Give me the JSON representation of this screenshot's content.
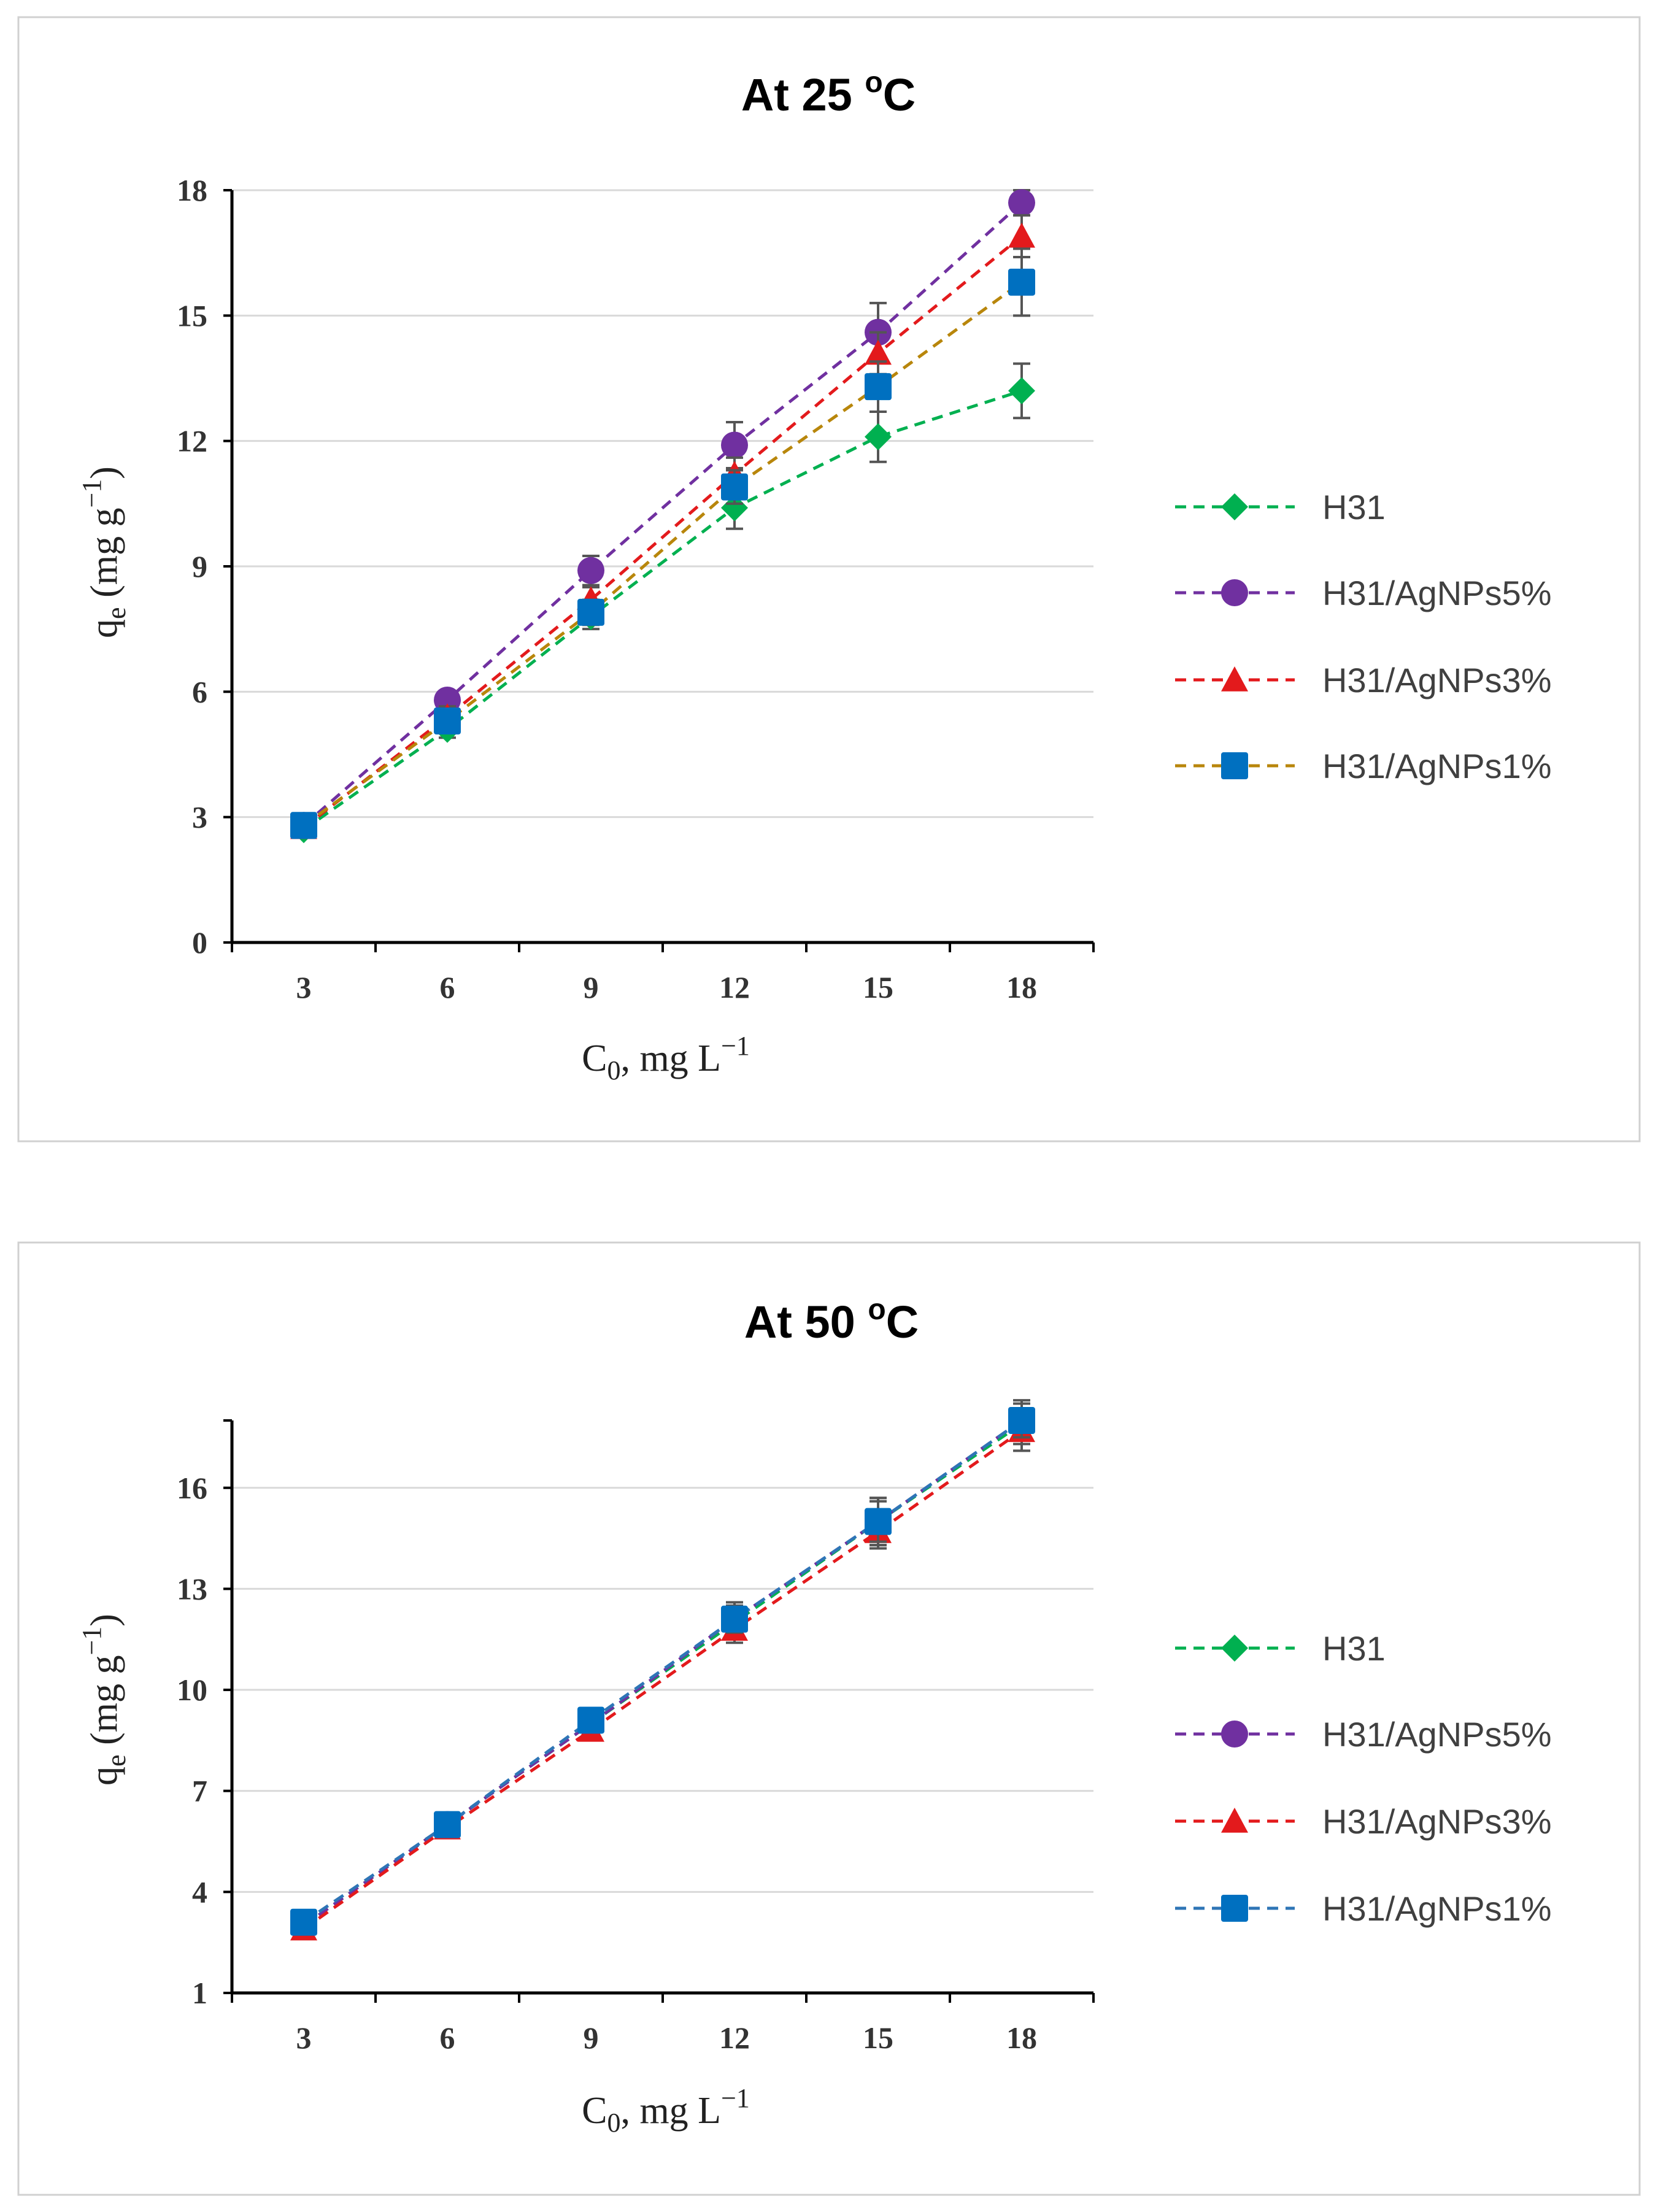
{
  "chart_data": [
    {
      "type": "line",
      "title": "At 25 °C",
      "title_main": "At 25 ",
      "title_sup": "o",
      "title_unit": "C",
      "xlabel": "C0, mg L−1",
      "ylabel": "qe (mg g−1)",
      "categories": [
        3,
        6,
        9,
        12,
        15,
        18
      ],
      "yticks": [
        0,
        3,
        6,
        9,
        12,
        15,
        18
      ],
      "ylim": [
        0,
        18
      ],
      "grid": true,
      "legend_position": "right",
      "series": [
        {
          "name": "H31",
          "marker": "diamond",
          "color": "#00b050",
          "values": [
            2.7,
            5.1,
            7.8,
            10.4,
            12.1,
            13.2
          ],
          "errors": [
            0.15,
            0.2,
            0.3,
            0.5,
            0.6,
            0.65
          ]
        },
        {
          "name": "H31/AgNPs5%",
          "marker": "circle",
          "color": "#7030a0",
          "values": [
            2.8,
            5.8,
            8.9,
            11.9,
            14.6,
            17.7
          ],
          "errors": [
            0.15,
            0.2,
            0.35,
            0.55,
            0.7,
            0.3
          ]
        },
        {
          "name": "H31/AgNPs3%",
          "marker": "triangle",
          "color": "#e31a1c",
          "values": [
            2.75,
            5.4,
            8.2,
            11.2,
            14.1,
            16.9
          ],
          "errors": [
            0.15,
            0.25,
            0.3,
            0.4,
            0.5,
            0.5
          ]
        },
        {
          "name": "H31/AgNPs1%",
          "marker": "square",
          "color": "#0070c0",
          "line_color": "#b8860b",
          "values": [
            2.8,
            5.3,
            7.9,
            10.9,
            13.3,
            15.8
          ],
          "errors": [
            0.15,
            0.2,
            0.3,
            0.4,
            0.6,
            0.8
          ]
        }
      ]
    },
    {
      "type": "line",
      "title": "At 50 °C",
      "title_main": "At 50 ",
      "title_sup": "o",
      "title_unit": "C",
      "xlabel": "C0, mg L−1",
      "ylabel": "qe (mg g−1)",
      "categories": [
        3,
        6,
        9,
        12,
        15,
        18
      ],
      "yticks": [
        1,
        4,
        7,
        10,
        13,
        16
      ],
      "ylim": [
        1,
        18
      ],
      "grid": true,
      "legend_position": "right",
      "series": [
        {
          "name": "H31",
          "marker": "diamond",
          "color": "#00b050",
          "values": [
            3.0,
            6.0,
            9.0,
            12.0,
            15.0,
            17.9
          ],
          "errors": [
            0.15,
            0.2,
            0.3,
            0.5,
            0.7,
            0.6
          ]
        },
        {
          "name": "H31/AgNPs5%",
          "marker": "circle",
          "color": "#7030a0",
          "values": [
            3.0,
            6.0,
            9.0,
            12.1,
            15.0,
            18.0
          ],
          "errors": [
            0.15,
            0.2,
            0.3,
            0.5,
            0.7,
            0.6
          ]
        },
        {
          "name": "H31/AgNPs3%",
          "marker": "triangle",
          "color": "#e31a1c",
          "values": [
            2.9,
            5.9,
            8.8,
            11.8,
            14.7,
            17.7
          ],
          "errors": [
            0.15,
            0.2,
            0.3,
            0.4,
            0.5,
            0.6
          ]
        },
        {
          "name": "H31/AgNPs1%",
          "marker": "square",
          "color": "#0070c0",
          "line_color": "#2e75b6",
          "values": [
            3.1,
            6.0,
            9.1,
            12.1,
            15.0,
            18.0
          ],
          "errors": [
            0.15,
            0.2,
            0.3,
            0.4,
            0.6,
            0.5
          ]
        }
      ]
    }
  ]
}
